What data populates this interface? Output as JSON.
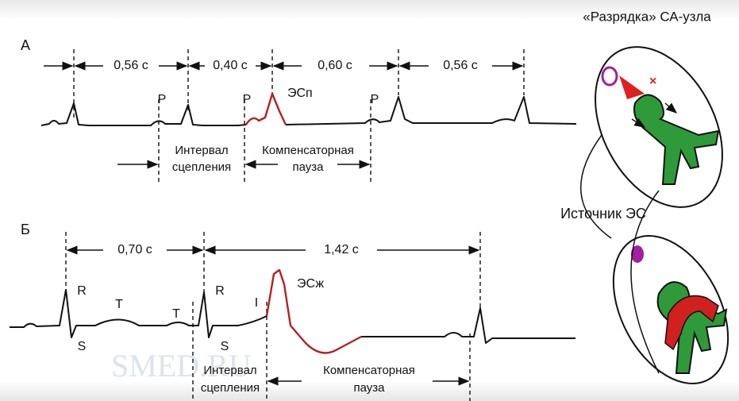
{
  "title": "«Разрядка» СА-узла",
  "source_label": "Источник ЭС",
  "watermark": "SMED.RU",
  "panels": [
    {
      "label": "А",
      "intervals": [
        "0,56 с",
        "0,40 с",
        "0,60 с",
        "0,56 с"
      ],
      "wave_labels": [
        "P",
        "P",
        "ЭСп",
        "P"
      ],
      "annotations": [
        [
          "Интервал",
          "сцепления"
        ],
        [
          "Компенсаторная",
          "пауза"
        ]
      ]
    },
    {
      "label": "Б",
      "intervals": [
        "0,70 с",
        "1,42 с"
      ],
      "wave_labels": [
        "R",
        "T",
        "T",
        "R",
        "I",
        "ЭСж",
        "S",
        "S"
      ],
      "annotations": [
        [
          "Интервал",
          "сцепления"
        ],
        [
          "Компенсаторная",
          "пауза"
        ]
      ]
    }
  ]
}
